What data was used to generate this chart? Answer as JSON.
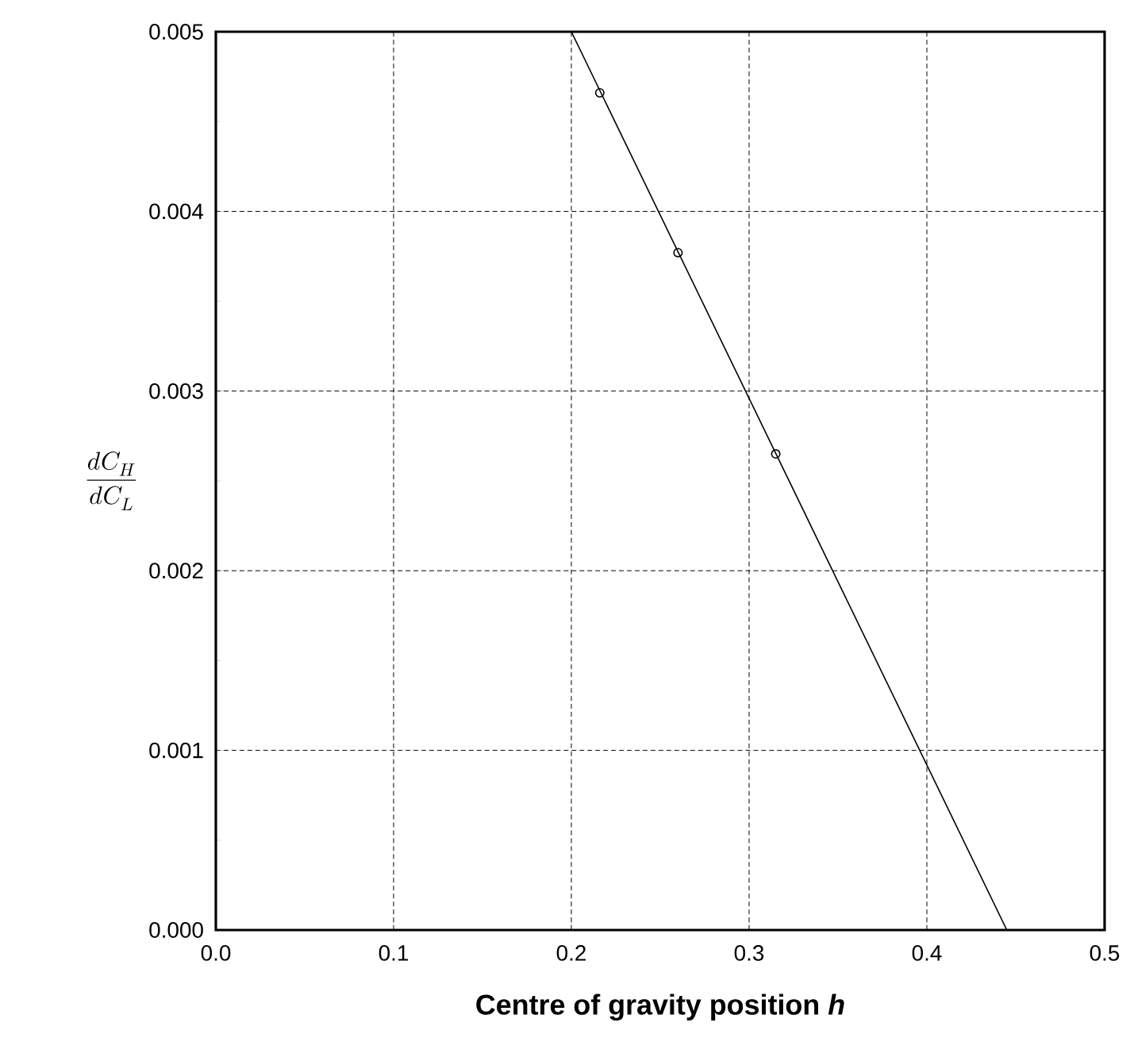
{
  "chart_data": {
    "type": "scatter",
    "xlabel": "Centre of gravity position *h*",
    "ylabel": "\\frac{dC_H}{dC_L}",
    "series": [
      {
        "color": "#000000",
        "marker": "circle",
        "x": [
          0.216,
          0.26,
          0.315
        ],
        "values": [
          0.00466,
          0.00377,
          0.00265
        ]
      },
      {
        "type": "line",
        "color": "#000000",
        "marker": "none",
        "line_style": "solid",
        "x": [
          0.2,
          0.445
        ],
        "values": [
          0.005,
          0.0
        ]
      }
    ],
    "xlim": [
      0,
      0.5
    ],
    "ylim": [
      0,
      0.005
    ],
    "xticks": [
      {
        "value": 0,
        "label": "0.0"
      },
      0.1,
      0.2,
      0.3,
      0.4,
      0.5
    ],
    "yticks": [
      {
        "value": 0,
        "label": "0.000"
      },
      {
        "value": 0.0005,
        "label": null
      },
      0.001,
      {
        "value": 0.0015,
        "label": null
      },
      0.002,
      {
        "value": 0.0025,
        "label": null
      },
      0.003,
      {
        "value": 0.0035,
        "label": null
      },
      0.004,
      {
        "value": 0.0045,
        "label": null
      },
      0.005
    ],
    "grid": true
  }
}
